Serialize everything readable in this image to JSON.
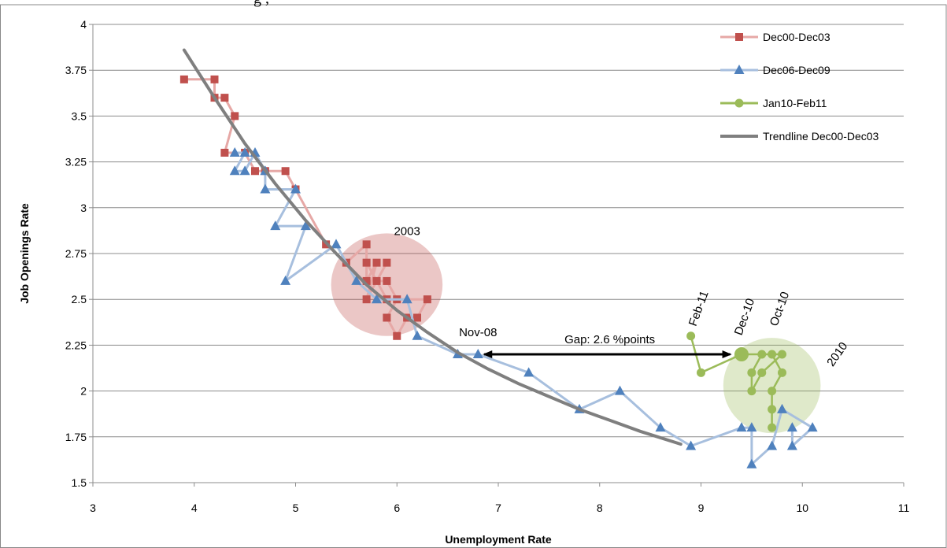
{
  "page": {
    "top_caption": "g  ,"
  },
  "chart_data": {
    "type": "scatter",
    "xlabel": "Unemployment Rate",
    "ylabel": "Job Openings Rate",
    "xlim": [
      3,
      11
    ],
    "ylim": [
      1.5,
      4
    ],
    "x_ticks": [
      3,
      4,
      5,
      6,
      7,
      8,
      9,
      10,
      11
    ],
    "y_ticks": [
      "1.5",
      "1.75",
      "2",
      "2.25",
      "2.5",
      "2.75",
      "3",
      "3.25",
      "3.5",
      "3.75",
      "4"
    ],
    "grid": "horizontal",
    "legend_position": "top-right",
    "series": [
      {
        "name": "Dec00-Dec03",
        "color": "#c0504d",
        "line_color": "#e6a8a6",
        "marker": "square",
        "points": [
          [
            3.9,
            3.7
          ],
          [
            4.2,
            3.7
          ],
          [
            4.2,
            3.6
          ],
          [
            4.3,
            3.6
          ],
          [
            4.4,
            3.5
          ],
          [
            4.3,
            3.3
          ],
          [
            4.5,
            3.3
          ],
          [
            4.6,
            3.2
          ],
          [
            4.7,
            3.2
          ],
          [
            4.9,
            3.2
          ],
          [
            5.0,
            3.1
          ],
          [
            5.3,
            2.8
          ],
          [
            5.5,
            2.7
          ],
          [
            5.7,
            2.8
          ],
          [
            5.7,
            2.6
          ],
          [
            5.8,
            2.7
          ],
          [
            5.7,
            2.5
          ],
          [
            5.9,
            2.7
          ],
          [
            5.8,
            2.6
          ],
          [
            5.9,
            2.6
          ],
          [
            6.0,
            2.5
          ],
          [
            5.9,
            2.4
          ],
          [
            6.0,
            2.3
          ],
          [
            6.1,
            2.4
          ],
          [
            6.2,
            2.4
          ],
          [
            6.3,
            2.5
          ],
          [
            5.9,
            2.5
          ],
          [
            5.7,
            2.7
          ]
        ]
      },
      {
        "name": "Dec06-Dec09",
        "color": "#4f81bd",
        "line_color": "#a7bfde",
        "marker": "triangle",
        "points": [
          [
            4.4,
            3.3
          ],
          [
            4.5,
            3.3
          ],
          [
            4.4,
            3.2
          ],
          [
            4.5,
            3.2
          ],
          [
            4.6,
            3.3
          ],
          [
            4.7,
            3.2
          ],
          [
            4.7,
            3.1
          ],
          [
            5.0,
            3.1
          ],
          [
            4.8,
            2.9
          ],
          [
            5.1,
            2.9
          ],
          [
            4.9,
            2.6
          ],
          [
            5.4,
            2.8
          ],
          [
            5.6,
            2.6
          ],
          [
            5.8,
            2.5
          ],
          [
            6.1,
            2.5
          ],
          [
            6.2,
            2.3
          ],
          [
            6.6,
            2.2
          ],
          [
            6.8,
            2.2
          ],
          [
            7.3,
            2.1
          ],
          [
            7.8,
            1.9
          ],
          [
            8.2,
            2.0
          ],
          [
            8.6,
            1.8
          ],
          [
            8.9,
            1.7
          ],
          [
            9.4,
            1.8
          ],
          [
            9.5,
            1.8
          ],
          [
            9.5,
            1.6
          ],
          [
            9.7,
            1.7
          ],
          [
            9.8,
            1.9
          ],
          [
            10.1,
            1.8
          ],
          [
            9.9,
            1.7
          ],
          [
            9.9,
            1.8
          ]
        ]
      },
      {
        "name": "Jan10-Feb11",
        "color": "#9bbb59",
        "line_color": "#9bbb59",
        "marker": "circle",
        "points": [
          [
            9.7,
            1.8
          ],
          [
            9.7,
            1.9
          ],
          [
            9.7,
            2.0
          ],
          [
            9.8,
            2.1
          ],
          [
            9.7,
            2.2
          ],
          [
            9.6,
            2.2
          ],
          [
            9.5,
            2.1
          ],
          [
            9.5,
            2.0
          ],
          [
            9.6,
            2.1
          ],
          [
            9.8,
            2.2
          ],
          [
            9.4,
            2.2
          ],
          [
            9.0,
            2.1
          ],
          [
            8.9,
            2.3
          ]
        ],
        "highlight_point": [
          9.4,
          2.2
        ]
      },
      {
        "name": "Trendline Dec00-Dec03",
        "color": "#7f7f7f",
        "line_color": "#7f7f7f",
        "marker": "none",
        "curve": [
          [
            3.9,
            3.86
          ],
          [
            4.2,
            3.6
          ],
          [
            4.5,
            3.35
          ],
          [
            4.8,
            3.13
          ],
          [
            5.1,
            2.93
          ],
          [
            5.4,
            2.75
          ],
          [
            5.7,
            2.58
          ],
          [
            6.0,
            2.44
          ],
          [
            6.3,
            2.32
          ],
          [
            6.6,
            2.21
          ],
          [
            6.9,
            2.12
          ],
          [
            7.2,
            2.04
          ],
          [
            7.5,
            1.97
          ],
          [
            7.8,
            1.9
          ],
          [
            8.1,
            1.84
          ],
          [
            8.4,
            1.78
          ],
          [
            8.8,
            1.71
          ]
        ]
      }
    ],
    "highlight_regions": [
      {
        "label": "2003",
        "center": [
          5.9,
          2.58
        ],
        "rx": 0.55,
        "ry": 0.28,
        "color": "#c0504d"
      },
      {
        "label": "2010",
        "center": [
          9.7,
          2.03
        ],
        "rx": 0.48,
        "ry": 0.26,
        "color": "#9bbb59"
      }
    ],
    "annotations": [
      {
        "text": "2003",
        "at": [
          6.1,
          2.85
        ],
        "rotate": 0
      },
      {
        "text": "Nov-08",
        "at": [
          6.8,
          2.3
        ],
        "rotate": 0
      },
      {
        "text": "Gap: 2.6 %points",
        "at": [
          8.1,
          2.26
        ],
        "rotate": 0
      },
      {
        "text": "Feb-11",
        "at": [
          8.95,
          2.35
        ],
        "rotate": -70
      },
      {
        "text": "Dec-10",
        "at": [
          9.4,
          2.3
        ],
        "rotate": -70
      },
      {
        "text": "Oct-10",
        "at": [
          9.75,
          2.35
        ],
        "rotate": -70
      },
      {
        "text": "2010",
        "at": [
          10.3,
          2.13
        ],
        "rotate": -55
      }
    ],
    "gap_arrow": {
      "from": [
        6.8,
        2.2
      ],
      "to": [
        9.35,
        2.2
      ],
      "color": "#000000"
    }
  }
}
